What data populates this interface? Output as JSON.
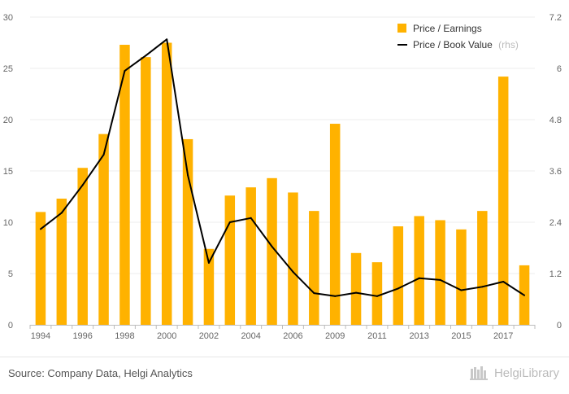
{
  "chart_data": {
    "type": "bar",
    "categories": [
      "1994",
      "1995",
      "1996",
      "1997",
      "1998",
      "1999",
      "2000",
      "2001",
      "2002",
      "2003",
      "2004",
      "2005",
      "2006",
      "2007",
      "2009",
      "2010",
      "2011",
      "2012",
      "2013",
      "2014",
      "2015",
      "2016",
      "2017",
      "2018"
    ],
    "x_tick_labels": [
      "1994",
      "",
      "1996",
      "",
      "1998",
      "",
      "2000",
      "",
      "2002",
      "",
      "2004",
      "",
      "2006",
      "",
      "2009",
      "",
      "2011",
      "",
      "2013",
      "",
      "2015",
      "",
      "2017",
      ""
    ],
    "series": [
      {
        "name": "Price / Earnings",
        "type": "bar",
        "axis": "left",
        "color": "#FFB200",
        "values": [
          11.0,
          12.3,
          15.3,
          18.6,
          27.3,
          26.1,
          27.5,
          18.1,
          7.4,
          12.6,
          13.4,
          14.3,
          12.9,
          11.1,
          19.6,
          7.0,
          6.1,
          9.6,
          10.6,
          10.2,
          9.3,
          11.1,
          24.2,
          5.8
        ]
      },
      {
        "name": "Price / Book Value",
        "type": "line",
        "axis": "right",
        "color": "#000000",
        "values": [
          2.24,
          2.62,
          3.27,
          3.98,
          5.94,
          6.3,
          6.68,
          3.5,
          1.45,
          2.4,
          2.5,
          1.83,
          1.24,
          0.74,
          0.67,
          0.75,
          0.67,
          0.85,
          1.09,
          1.05,
          0.81,
          0.89,
          1.01,
          0.69
        ]
      }
    ],
    "y_left": {
      "min": 0,
      "max": 30,
      "ticks": [
        "0",
        "5",
        "10",
        "15",
        "20",
        "25",
        "30"
      ]
    },
    "y_right": {
      "min": 0,
      "max": 7.2,
      "ticks": [
        "0",
        "1.2",
        "2.4",
        "3.6",
        "4.8",
        "6",
        "7.2"
      ]
    },
    "legend": {
      "position": "top-right",
      "items": [
        {
          "label": "Price / Earnings",
          "suffix": "",
          "color": "#FFB200",
          "marker": "square"
        },
        {
          "label": "Price / Book Value",
          "suffix": "(rhs)",
          "color": "#000000",
          "marker": "line"
        }
      ]
    },
    "grid": true
  },
  "footer": {
    "source": "Source: Company Data, Helgi Analytics",
    "brand": "HelgiLibrary"
  }
}
